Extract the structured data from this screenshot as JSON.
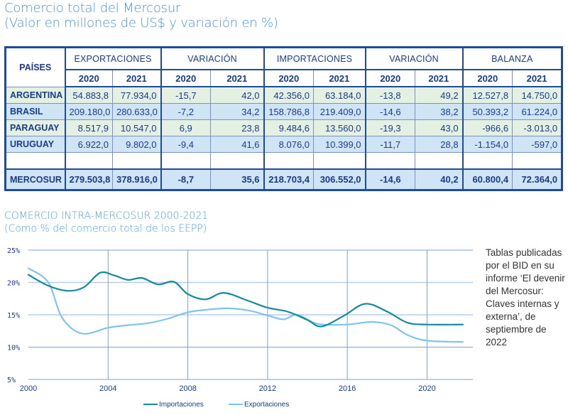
{
  "header": {
    "title": "Comercio total del Mercosur",
    "subtitle": "(Valor en millones de US$ y variación en %)"
  },
  "table": {
    "country_header": "PAÍSES",
    "groups": [
      "EXPORTACIONES",
      "VARIACIÓN",
      "IMPORTACIONES",
      "VARIACIÓN",
      "BALANZA"
    ],
    "years": [
      "2020",
      "2021",
      "2020",
      "2021",
      "2020",
      "2021",
      "2020",
      "2021",
      "2020",
      "2021"
    ],
    "rows": [
      {
        "name": "ARGENTINA",
        "values": [
          "54.883,8",
          "77.934,0",
          "-15,7",
          "42,0",
          "42.356,0",
          "63.184,0",
          "-13,8",
          "49,2",
          "12.527,8",
          "14.750,0"
        ]
      },
      {
        "name": "BRASIL",
        "values": [
          "209.180,0",
          "280.633,0",
          "-7,2",
          "34,2",
          "158.786,8",
          "219.409,0",
          "-14,6",
          "38,2",
          "50.393,2",
          "61.224,0"
        ]
      },
      {
        "name": "PARAGUAY",
        "values": [
          "8.517,9",
          "10.547,0",
          "6,9",
          "23,8",
          "9.484,6",
          "13.560,0",
          "-19,3",
          "43,0",
          "-966,6",
          "-3.013,0"
        ]
      },
      {
        "name": "URUGUAY",
        "values": [
          "6.922,0",
          "9.802,0",
          "-9,4",
          "41,6",
          "8.076,0",
          "10.399,0",
          "-11,7",
          "28,8",
          "-1.154,0",
          "-597,0"
        ]
      }
    ],
    "total": {
      "name": "MERCOSUR",
      "values": [
        "279.503,8",
        "378.916,0",
        "-8,7",
        "35,6",
        "218.703,4",
        "306.552,0",
        "-14,6",
        "40,2",
        "60.800,4",
        "72.364,0"
      ]
    }
  },
  "chart_header": {
    "title": "COMERCIO INTRA-MERCOSUR 2000-2021",
    "subtitle": "(Como % del comercio total de los EEPP)"
  },
  "chart_data": {
    "type": "line",
    "title": "COMERCIO INTRA-MERCOSUR 2000-2021",
    "subtitle": "(Como % del comercio total de los EEPP)",
    "xlabel": "",
    "ylabel": "",
    "xlim": [
      2000,
      2021.8
    ],
    "ylim": [
      5,
      25
    ],
    "x_ticks": [
      2000,
      2004,
      2008,
      2012,
      2016,
      2020
    ],
    "x_tick_labels": [
      "2000",
      "2004",
      "2008",
      "2012",
      "2016",
      "2020"
    ],
    "y_ticks": [
      5,
      10,
      15,
      20,
      25
    ],
    "y_tick_labels": [
      "5%",
      "10%",
      "15%",
      "20%",
      "25%"
    ],
    "grid": true,
    "legend": "bottom-center",
    "series": [
      {
        "name": "Importaciones",
        "color": "#138a9e",
        "x": [
          2000,
          2001,
          2002,
          2002.8,
          2003.6,
          2004.3,
          2005,
          2005.7,
          2006.5,
          2007.3,
          2008,
          2008.9,
          2009.8,
          2011,
          2012,
          2013,
          2014,
          2014.7,
          2015.8,
          2016.9,
          2018,
          2019,
          2020,
          2021.8
        ],
        "values": [
          21.2,
          19.5,
          18.7,
          19.3,
          21.5,
          21.1,
          20.4,
          20.7,
          19.7,
          20.1,
          18.2,
          17.4,
          18.4,
          17.2,
          16.1,
          15.5,
          14.2,
          13.2,
          14.8,
          16.7,
          15.5,
          13.8,
          13.5,
          13.5
        ]
      },
      {
        "name": "Exportaciones",
        "color": "#7fc4ee",
        "x": [
          2000,
          2001,
          2001.7,
          2002.7,
          2004,
          2005,
          2006,
          2007,
          2008,
          2009,
          2010,
          2011,
          2012,
          2012.8,
          2013.5,
          2014.5,
          2016,
          2017.2,
          2018.2,
          2019,
          2020,
          2021.8
        ],
        "values": [
          22.2,
          20.0,
          14.5,
          12.1,
          13.0,
          13.4,
          13.7,
          14.4,
          15.4,
          15.8,
          16.0,
          15.7,
          14.9,
          14.3,
          15.0,
          13.6,
          13.5,
          13.9,
          13.4,
          11.9,
          11.0,
          10.8
        ]
      }
    ]
  },
  "note": {
    "text": "Tablas publicadas por el BID en su informe ‘El devenir del Mercosur: Claves internas y externa’, de septiembre de 2022"
  }
}
